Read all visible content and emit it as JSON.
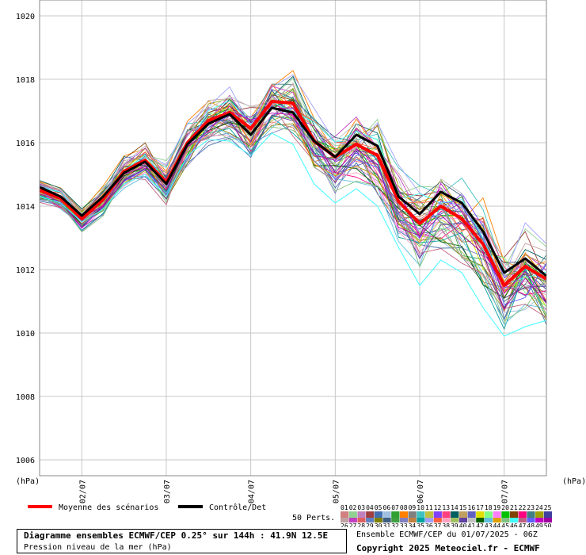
{
  "chart_data": {
    "type": "line",
    "ylim": [
      1005.5,
      1020.5
    ],
    "y_ticks": [
      1006,
      1008,
      1010,
      1012,
      1014,
      1016,
      1018,
      1020
    ],
    "x_ticks": [
      "02/07",
      "03/07",
      "04/07",
      "05/07",
      "06/07",
      "07/07"
    ],
    "y_unit_left": "(hPa)",
    "y_unit_right": "(hPa)",
    "grid": true,
    "steps": 25,
    "mean": {
      "name": "Moyenne des scénarios",
      "color": "#ff0000",
      "values": [
        1014.5,
        1014.25,
        1013.6,
        1014.2,
        1015.1,
        1015.45,
        1014.75,
        1016.0,
        1016.7,
        1016.95,
        1016.45,
        1017.3,
        1017.25,
        1016.05,
        1015.55,
        1015.95,
        1015.6,
        1014.15,
        1013.45,
        1014.0,
        1013.6,
        1012.8,
        1011.5,
        1012.1,
        1011.7
      ]
    },
    "control": {
      "name": "Contrôle/Det",
      "color": "#000000",
      "values": [
        1014.6,
        1014.3,
        1013.7,
        1014.3,
        1015.05,
        1015.4,
        1014.7,
        1015.95,
        1016.6,
        1016.9,
        1016.25,
        1017.1,
        1016.95,
        1016.05,
        1015.55,
        1016.25,
        1015.9,
        1014.3,
        1013.75,
        1014.45,
        1014.1,
        1013.2,
        1011.9,
        1012.35,
        1011.8
      ]
    },
    "perturbations_label": "50 Perts.",
    "perturbations": [
      {
        "name": "01",
        "color": "#d08080"
      },
      {
        "name": "02",
        "color": "#90d090"
      },
      {
        "name": "03",
        "color": "#c080c0"
      },
      {
        "name": "04",
        "color": "#a04040"
      },
      {
        "name": "05",
        "color": "#4070b0"
      },
      {
        "name": "06",
        "color": "#a0c0e0"
      },
      {
        "name": "07",
        "color": "#30a030"
      },
      {
        "name": "08",
        "color": "#ff8000"
      },
      {
        "name": "09",
        "color": "#808080"
      },
      {
        "name": "10",
        "color": "#40c0c0"
      },
      {
        "name": "11",
        "color": "#c0c040"
      },
      {
        "name": "12",
        "color": "#8040ff"
      },
      {
        "name": "13",
        "color": "#ff4080"
      },
      {
        "name": "14",
        "color": "#006060"
      },
      {
        "name": "15",
        "color": "#c0a060"
      },
      {
        "name": "16",
        "color": "#6060c0"
      },
      {
        "name": "17",
        "color": "#e0e000"
      },
      {
        "name": "18",
        "color": "#80ff80"
      },
      {
        "name": "19",
        "color": "#ff80ff"
      },
      {
        "name": "20",
        "color": "#00c000"
      },
      {
        "name": "21",
        "color": "#804000"
      },
      {
        "name": "22",
        "color": "#ff0080"
      },
      {
        "name": "23",
        "color": "#408080"
      },
      {
        "name": "24",
        "color": "#a0a000"
      },
      {
        "name": "25",
        "color": "#4040a0"
      },
      {
        "name": "26",
        "color": "#c0a0a0"
      },
      {
        "name": "27",
        "color": "#c040c0"
      },
      {
        "name": "28",
        "color": "#e06060"
      },
      {
        "name": "29",
        "color": "#6080c0"
      },
      {
        "name": "30",
        "color": "#808000"
      },
      {
        "name": "31",
        "color": "#406080"
      },
      {
        "name": "32",
        "color": "#40a040"
      },
      {
        "name": "33",
        "color": "#8080c0"
      },
      {
        "name": "34",
        "color": "#c08040"
      },
      {
        "name": "35",
        "color": "#00a0a0"
      },
      {
        "name": "36",
        "color": "#a0a0ff"
      },
      {
        "name": "37",
        "color": "#ff6040"
      },
      {
        "name": "38",
        "color": "#ffa0c0"
      },
      {
        "name": "39",
        "color": "#a0c060"
      },
      {
        "name": "40",
        "color": "#6040a0"
      },
      {
        "name": "41",
        "color": "#c0c0c0"
      },
      {
        "name": "42",
        "color": "#006000"
      },
      {
        "name": "43",
        "color": "#60c0e0"
      },
      {
        "name": "44",
        "color": "#e0a000"
      },
      {
        "name": "45",
        "color": "#80c080"
      },
      {
        "name": "46",
        "color": "#40ffff"
      },
      {
        "name": "47",
        "color": "#c06080"
      },
      {
        "name": "48",
        "color": "#6060ff"
      },
      {
        "name": "49",
        "color": "#c000c0"
      },
      {
        "name": "50",
        "color": "#a000a0"
      }
    ],
    "highlight_member": {
      "name": "46",
      "values": [
        1014.3,
        1014.1,
        1013.5,
        1013.9,
        1014.7,
        1015.0,
        1014.3,
        1015.6,
        1016.1,
        1016.05,
        1015.6,
        1016.3,
        1015.95,
        1014.7,
        1014.1,
        1014.55,
        1014.0,
        1012.7,
        1011.5,
        1012.3,
        1011.9,
        1010.8,
        1009.9,
        1010.2,
        1010.4
      ]
    }
  },
  "legend": {
    "mean_label": "Moyenne des scénarios",
    "control_label": "Contrôle/Det"
  },
  "title": "Diagramme ensembles ECMWF/CEP 0.25° sur 144h : 41.9N 12.5E",
  "subtitle": "Pression niveau de la mer (hPa)",
  "run_info": "Ensemble ECMWF/CEP du 01/07/2025 - 06Z",
  "copyright": "Copyright 2025 Meteociel.fr - ECMWF"
}
